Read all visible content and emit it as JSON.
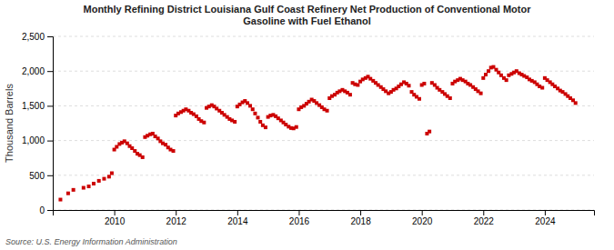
{
  "chart_data": {
    "type": "scatter",
    "title": "Monthly Refining District Louisiana Gulf Coast Refinery Net Production of Conventional Motor\nGasoline with Fuel Ethanol",
    "ylabel": "Thousand Barrels",
    "annotations": [
      "Source: U.S. Energy Information Administration"
    ],
    "color": "#cc0000",
    "marker": "square",
    "grid": true,
    "xlim": [
      2008.0,
      2025.6
    ],
    "xticks": [
      2010,
      2012,
      2014,
      2016,
      2018,
      2020,
      2022,
      2024
    ],
    "ylim": [
      0,
      2500
    ],
    "yticks": [
      0,
      500,
      {
        "value": 1000,
        "label": "1,000"
      },
      {
        "value": 1500,
        "label": "1,500"
      },
      {
        "value": 2000,
        "label": "2,000"
      },
      {
        "value": 2500,
        "label": "2,500"
      }
    ],
    "x": [
      2008.25,
      2008.5,
      2008.67,
      2009.0,
      2009.17,
      2009.33,
      2009.5,
      2009.67,
      2009.83,
      2009.92,
      2010.0,
      2010.08,
      2010.17,
      2010.25,
      2010.33,
      2010.42,
      2010.5,
      2010.58,
      2010.67,
      2010.75,
      2010.83,
      2010.92,
      2011.0,
      2011.08,
      2011.17,
      2011.25,
      2011.33,
      2011.42,
      2011.5,
      2011.58,
      2011.67,
      2011.75,
      2011.83,
      2011.92,
      2012.0,
      2012.08,
      2012.17,
      2012.25,
      2012.33,
      2012.42,
      2012.5,
      2012.58,
      2012.67,
      2012.75,
      2012.83,
      2012.92,
      2013.0,
      2013.08,
      2013.17,
      2013.25,
      2013.33,
      2013.42,
      2013.5,
      2013.58,
      2013.67,
      2013.75,
      2013.83,
      2013.92,
      2014.0,
      2014.08,
      2014.17,
      2014.25,
      2014.33,
      2014.42,
      2014.5,
      2014.58,
      2014.67,
      2014.75,
      2014.83,
      2014.92,
      2015.0,
      2015.08,
      2015.17,
      2015.25,
      2015.33,
      2015.42,
      2015.5,
      2015.58,
      2015.67,
      2015.75,
      2015.83,
      2015.92,
      2016.0,
      2016.08,
      2016.17,
      2016.25,
      2016.33,
      2016.42,
      2016.5,
      2016.58,
      2016.67,
      2016.75,
      2016.83,
      2016.92,
      2017.0,
      2017.08,
      2017.17,
      2017.25,
      2017.33,
      2017.42,
      2017.5,
      2017.58,
      2017.67,
      2017.75,
      2017.83,
      2017.92,
      2018.0,
      2018.08,
      2018.17,
      2018.25,
      2018.33,
      2018.42,
      2018.5,
      2018.58,
      2018.67,
      2018.75,
      2018.83,
      2018.92,
      2019.0,
      2019.08,
      2019.17,
      2019.25,
      2019.33,
      2019.42,
      2019.5,
      2019.58,
      2019.67,
      2019.75,
      2019.83,
      2019.92,
      2020.0,
      2020.08,
      2020.17,
      2020.25,
      2020.33,
      2020.42,
      2020.5,
      2020.58,
      2020.67,
      2020.75,
      2020.83,
      2020.92,
      2021.0,
      2021.08,
      2021.17,
      2021.25,
      2021.33,
      2021.42,
      2021.5,
      2021.58,
      2021.67,
      2021.75,
      2021.83,
      2021.92,
      2022.0,
      2022.08,
      2022.17,
      2022.25,
      2022.33,
      2022.42,
      2022.5,
      2022.58,
      2022.67,
      2022.75,
      2022.83,
      2022.92,
      2023.0,
      2023.08,
      2023.17,
      2023.25,
      2023.33,
      2023.42,
      2023.5,
      2023.58,
      2023.67,
      2023.75,
      2023.83,
      2023.92,
      2024.0,
      2024.08,
      2024.17,
      2024.25,
      2024.33,
      2024.42,
      2024.5,
      2024.58,
      2024.67,
      2024.75,
      2024.83,
      2024.92,
      2025.0
    ],
    "values": [
      150,
      240,
      290,
      320,
      340,
      380,
      420,
      450,
      480,
      530,
      870,
      910,
      950,
      970,
      990,
      960,
      920,
      890,
      850,
      810,
      790,
      760,
      1050,
      1070,
      1090,
      1100,
      1060,
      1030,
      990,
      960,
      940,
      900,
      870,
      850,
      1360,
      1390,
      1410,
      1430,
      1450,
      1430,
      1400,
      1380,
      1350,
      1310,
      1280,
      1260,
      1470,
      1490,
      1510,
      1490,
      1460,
      1430,
      1400,
      1370,
      1340,
      1310,
      1290,
      1270,
      1490,
      1520,
      1550,
      1570,
      1540,
      1500,
      1450,
      1390,
      1330,
      1270,
      1220,
      1190,
      1340,
      1360,
      1370,
      1350,
      1320,
      1290,
      1260,
      1230,
      1200,
      1180,
      1175,
      1195,
      1450,
      1480,
      1500,
      1530,
      1560,
      1590,
      1570,
      1540,
      1510,
      1480,
      1450,
      1430,
      1610,
      1640,
      1660,
      1690,
      1710,
      1730,
      1710,
      1690,
      1660,
      1830,
      1810,
      1800,
      1850,
      1880,
      1900,
      1920,
      1890,
      1860,
      1830,
      1800,
      1770,
      1740,
      1710,
      1680,
      1700,
      1730,
      1750,
      1780,
      1810,
      1840,
      1820,
      1790,
      1700,
      1660,
      1630,
      1600,
      1800,
      1820,
      1100,
      1130,
      1830,
      1800,
      1760,
      1730,
      1700,
      1670,
      1640,
      1610,
      1820,
      1850,
      1870,
      1890,
      1870,
      1850,
      1820,
      1800,
      1770,
      1740,
      1710,
      1680,
      1900,
      1950,
      2000,
      2050,
      2060,
      2020,
      1980,
      1940,
      1900,
      1870,
      1940,
      1960,
      1980,
      2000,
      1970,
      1950,
      1930,
      1910,
      1880,
      1860,
      1840,
      1810,
      1780,
      1760,
      1900,
      1870,
      1840,
      1810,
      1780,
      1750,
      1720,
      1700,
      1670,
      1640,
      1610,
      1580,
      1540
    ]
  }
}
